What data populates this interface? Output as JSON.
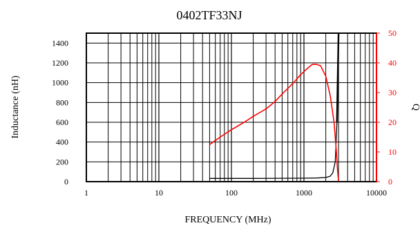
{
  "chart_data": {
    "type": "line",
    "title": "0402TF33NJ",
    "xlabel": "FREQUENCY (MHz)",
    "ylabel": "Inductance (nH)",
    "y2label": "Q",
    "x_scale": "log",
    "xlim": [
      1,
      10000
    ],
    "ylim": [
      0,
      1500
    ],
    "y2lim": [
      0,
      50
    ],
    "x_ticks": [
      1,
      10,
      100,
      1000,
      10000
    ],
    "x_tick_labels": [
      "1",
      "10",
      "100",
      "1000",
      "10000"
    ],
    "y_ticks": [
      0,
      200,
      400,
      600,
      800,
      1000,
      1200,
      1400
    ],
    "y_tick_labels": [
      "0",
      "200",
      "400",
      "600",
      "800",
      "1000",
      "1200",
      "1400"
    ],
    "y2_ticks": [
      0,
      10,
      20,
      30,
      40,
      50
    ],
    "y2_tick_labels": [
      "0",
      "10",
      "20",
      "30",
      "40",
      "50"
    ],
    "grid": true,
    "colors": {
      "inductance": "#000000",
      "q": "#ff0000",
      "right_axis": "#ff0000"
    },
    "series": [
      {
        "axis": "left",
        "x": [
          50,
          100,
          200,
          500,
          1000,
          1500,
          2000,
          2300,
          2500,
          2700,
          2850,
          2950,
          3000
        ],
        "y": [
          33,
          33,
          33,
          34,
          35,
          37,
          42,
          55,
          90,
          200,
          600,
          1200,
          1500
        ]
      },
      {
        "axis": "right",
        "x": [
          50,
          70,
          100,
          150,
          200,
          300,
          400,
          500,
          700,
          900,
          1100,
          1300,
          1500,
          1700,
          2000,
          2300,
          2600,
          2800,
          2900,
          3000
        ],
        "y": [
          12.5,
          15,
          17.5,
          20,
          22,
          24.5,
          27,
          29.5,
          33,
          36,
          38,
          39.5,
          39.5,
          39,
          35.5,
          29,
          20,
          10,
          4,
          0
        ]
      }
    ]
  }
}
